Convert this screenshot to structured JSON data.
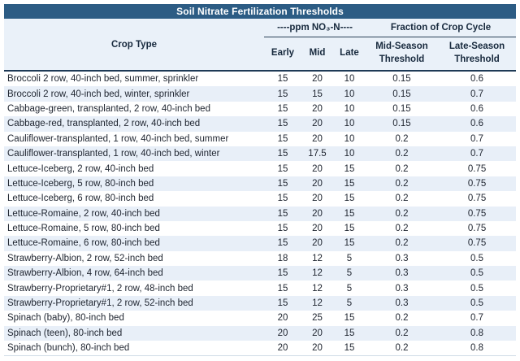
{
  "chart_data": {
    "type": "table",
    "title": "Soil Nitrate Fertilization Thresholds",
    "column_groups": [
      {
        "label": "----ppm NO₃-N----",
        "columns": [
          "Early",
          "Mid",
          "Late"
        ]
      },
      {
        "label": "Fraction of Crop Cycle",
        "columns": [
          "Mid-Season Threshold",
          "Late-Season Threshold"
        ]
      }
    ],
    "columns": [
      "Crop Type",
      "Early",
      "Mid",
      "Late",
      "Mid-Season Threshold",
      "Late-Season Threshold"
    ],
    "rows": [
      [
        "Broccoli 2 row, 40-inch bed, summer, sprinkler",
        15,
        20,
        10,
        0.15,
        0.6
      ],
      [
        "Broccoli 2 row, 40-inch bed, winter, sprinkler",
        15,
        15,
        10,
        0.15,
        0.7
      ],
      [
        "Cabbage-green, transplanted, 2 row, 40-inch bed",
        15,
        20,
        10,
        0.15,
        0.6
      ],
      [
        "Cabbage-red, transplanted, 2 row, 40-inch bed",
        15,
        20,
        10,
        0.15,
        0.6
      ],
      [
        "Cauliflower-transplanted, 1 row, 40-inch bed, summer",
        15,
        20,
        10,
        0.2,
        0.7
      ],
      [
        "Cauliflower-transplanted, 1 row, 40-inch bed, winter",
        15,
        17.5,
        10,
        0.2,
        0.7
      ],
      [
        "Lettuce-Iceberg, 2 row, 40-inch bed",
        15,
        20,
        15,
        0.2,
        0.75
      ],
      [
        "Lettuce-Iceberg, 5 row, 80-inch bed",
        15,
        20,
        15,
        0.2,
        0.75
      ],
      [
        "Lettuce-Iceberg, 6 row, 80-inch bed",
        15,
        20,
        15,
        0.2,
        0.75
      ],
      [
        "Lettuce-Romaine, 2 row, 40-inch bed",
        15,
        20,
        15,
        0.2,
        0.75
      ],
      [
        "Lettuce-Romaine, 5 row, 80-inch bed",
        15,
        20,
        15,
        0.2,
        0.75
      ],
      [
        "Lettuce-Romaine, 6 row, 80-inch bed",
        15,
        20,
        15,
        0.2,
        0.75
      ],
      [
        "Strawberry-Albion, 2 row, 52-inch bed",
        18,
        12,
        5,
        0.3,
        0.5
      ],
      [
        "Strawberry-Albion, 4 row, 64-inch bed",
        15,
        12,
        5,
        0.3,
        0.5
      ],
      [
        "Strawberry-Proprietary#1, 2 row, 48-inch bed",
        15,
        12,
        5,
        0.3,
        0.5
      ],
      [
        "Strawberry-Proprietary#1, 2 row, 52-inch bed",
        15,
        12,
        5,
        0.3,
        0.5
      ],
      [
        "Spinach (baby), 80-inch bed",
        20,
        25,
        15,
        0.2,
        0.7
      ],
      [
        "Spinach (teen), 80-inch bed",
        20,
        20,
        15,
        0.2,
        0.8
      ],
      [
        "Spinach (bunch), 80-inch bed",
        20,
        20,
        15,
        0.2,
        0.8
      ]
    ],
    "layout": {
      "row_striping": "alternating white and light blue, first data row white",
      "header_rule": "dark horizontal rule below header, thin rule under column group labels spanning value columns"
    }
  },
  "colors": {
    "title_bar_bg": "#2c5c84",
    "title_text": "#ffffff",
    "header_bg": "#eaf1f9",
    "alt_row_bg": "#e8eff8",
    "header_rule": "#1e3a56",
    "body_text": "#212732"
  }
}
